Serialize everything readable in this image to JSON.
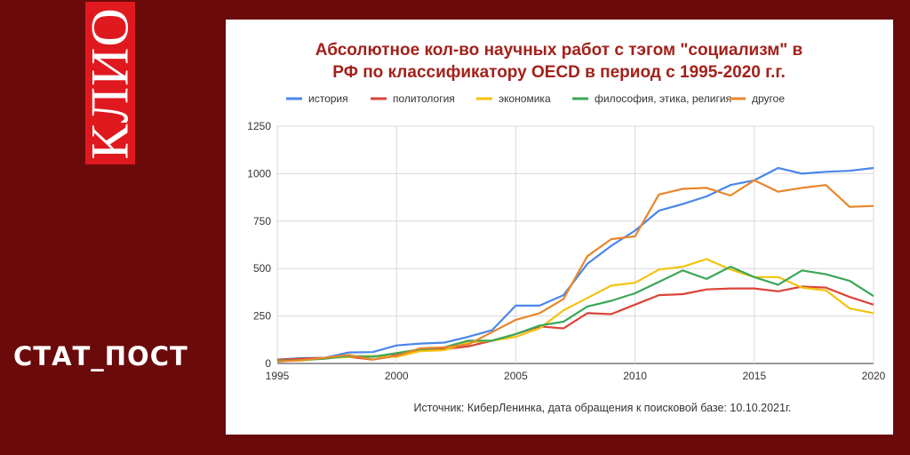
{
  "brand": {
    "name": "КЛИО",
    "label": "СТАТ_ПОСТ"
  },
  "colors": {
    "background": "#6b0a0a",
    "brand_box": "#e0191f",
    "title": "#a3211a"
  },
  "chart_data": {
    "type": "line",
    "title_lines": [
      "Абсолютное кол-во научных работ с тэгом \"социализм\"  в",
      "РФ по классификатору OECD  в период с 1995-2020 г.г."
    ],
    "source": "Источник: КиберЛенинка, дата обращения к поисковой базе: 10.10.2021г.",
    "legend_position": "top",
    "grid": true,
    "xlim": [
      1995,
      2020
    ],
    "ylim": [
      0,
      1250
    ],
    "x_ticks": [
      1995,
      2000,
      2005,
      2010,
      2015,
      2020
    ],
    "y_ticks": [
      0,
      250,
      500,
      750,
      1000,
      1250
    ],
    "x": [
      1995,
      1996,
      1997,
      1998,
      1999,
      2000,
      2001,
      2002,
      2003,
      2004,
      2005,
      2006,
      2007,
      2008,
      2009,
      2010,
      2011,
      2012,
      2013,
      2014,
      2015,
      2016,
      2017,
      2018,
      2019,
      2020
    ],
    "series": [
      {
        "name": "история",
        "color": "#4a86e8",
        "values": [
          20,
          28,
          30,
          58,
          60,
          95,
          105,
          110,
          140,
          175,
          305,
          305,
          360,
          525,
          620,
          700,
          805,
          840,
          880,
          940,
          965,
          1030,
          1000,
          1010,
          1015,
          1030
        ]
      },
      {
        "name": "политология",
        "color": "#db4437",
        "values": [
          20,
          25,
          30,
          35,
          20,
          45,
          75,
          75,
          90,
          120,
          155,
          195,
          185,
          265,
          260,
          310,
          360,
          365,
          390,
          395,
          395,
          380,
          405,
          400,
          350,
          310
        ]
      },
      {
        "name": "экономика",
        "color": "#f4c20d",
        "values": [
          15,
          15,
          28,
          35,
          40,
          35,
          65,
          70,
          110,
          120,
          140,
          185,
          280,
          345,
          410,
          425,
          495,
          510,
          550,
          495,
          455,
          455,
          400,
          385,
          290,
          265
        ]
      },
      {
        "name": "философия, этика, религия",
        "color": "#3aa757",
        "values": [
          15,
          18,
          25,
          40,
          35,
          55,
          75,
          85,
          120,
          120,
          155,
          200,
          220,
          300,
          330,
          370,
          430,
          490,
          445,
          510,
          455,
          415,
          490,
          470,
          435,
          355
        ]
      },
      {
        "name": "другое",
        "color": "#e8862a",
        "values": [
          10,
          18,
          30,
          45,
          20,
          40,
          80,
          85,
          100,
          165,
          230,
          265,
          340,
          565,
          655,
          670,
          890,
          920,
          925,
          885,
          965,
          905,
          925,
          940,
          825,
          830
        ]
      }
    ]
  }
}
